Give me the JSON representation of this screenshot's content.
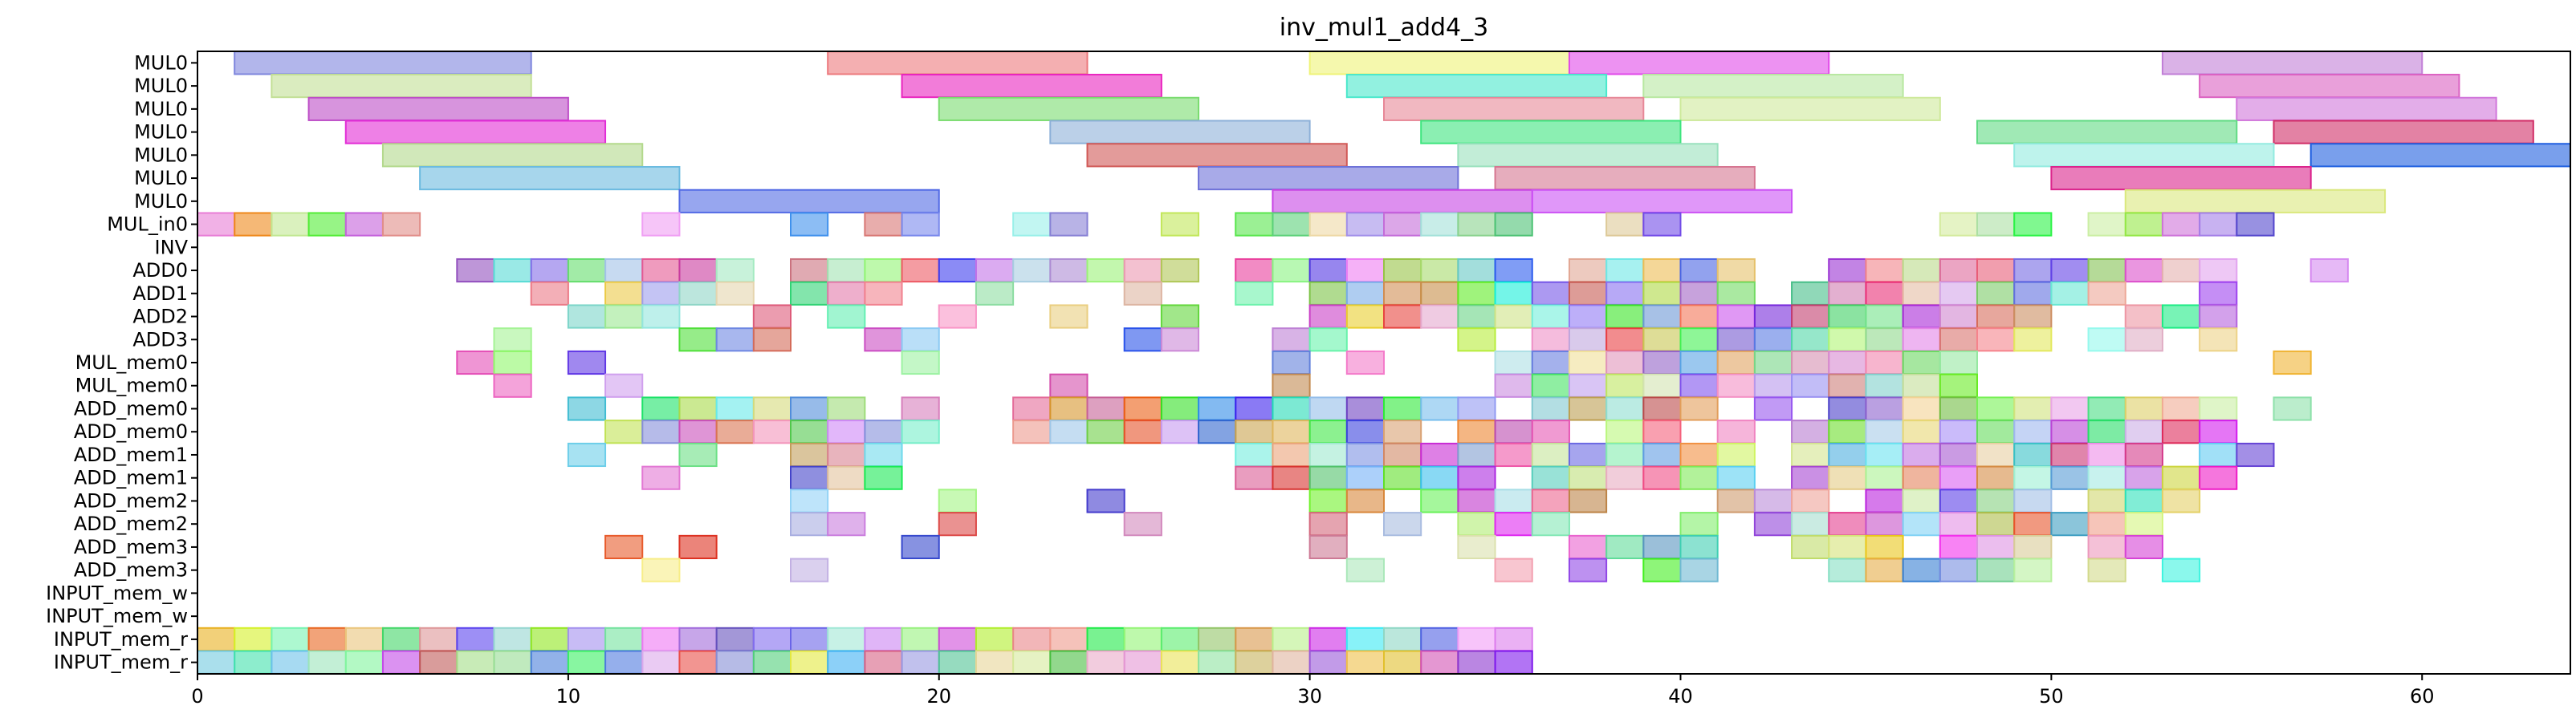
{
  "chart_data": {
    "type": "gantt",
    "title": "inv_mul1_add4_3",
    "xlabel": "",
    "ylabel": "",
    "xlim": [
      0,
      64
    ],
    "x_ticks": [
      0,
      10,
      20,
      30,
      40,
      50,
      60
    ],
    "grid": false,
    "rows": [
      "MUL0",
      "MUL0",
      "MUL0",
      "MUL0",
      "MUL0",
      "MUL0",
      "MUL0",
      "MUL_in0",
      "INV",
      "ADD0",
      "ADD1",
      "ADD2",
      "ADD3",
      "MUL_mem0",
      "MUL_mem0",
      "ADD_mem0",
      "ADD_mem0",
      "ADD_mem1",
      "ADD_mem1",
      "ADD_mem2",
      "ADD_mem2",
      "ADD_mem3",
      "ADD_mem3",
      "INPUT_mem_w",
      "INPUT_mem_w",
      "INPUT_mem_r",
      "INPUT_mem_r"
    ],
    "mul_bars": [
      [
        [
          1,
          8
        ],
        [
          17,
          7
        ],
        [
          30,
          7
        ],
        [
          37,
          7
        ],
        [
          53,
          7
        ]
      ],
      [
        [
          2,
          7
        ],
        [
          19,
          7
        ],
        [
          31,
          7
        ],
        [
          39,
          7
        ],
        [
          54,
          7
        ]
      ],
      [
        [
          3,
          7
        ],
        [
          20,
          7
        ],
        [
          32,
          7
        ],
        [
          40,
          7
        ],
        [
          55,
          7
        ]
      ],
      [
        [
          4,
          7
        ],
        [
          23,
          7
        ],
        [
          33,
          7
        ],
        [
          48,
          7
        ],
        [
          56,
          7
        ]
      ],
      [
        [
          5,
          7
        ],
        [
          24,
          7
        ],
        [
          34,
          7
        ],
        [
          49,
          7
        ],
        [
          57,
          7
        ]
      ],
      [
        [
          6,
          7
        ],
        [
          27,
          7
        ],
        [
          35,
          7
        ],
        [
          50,
          7
        ]
      ],
      [
        [
          13,
          7
        ],
        [
          29,
          7
        ],
        [
          36,
          7
        ],
        [
          52,
          7
        ]
      ]
    ],
    "unit_cells": [
      [
        0,
        1,
        2,
        3,
        4,
        5,
        12,
        16,
        18,
        19,
        22,
        23,
        26,
        28,
        29,
        30,
        31,
        32,
        33,
        34,
        35,
        38,
        39,
        47,
        48,
        49,
        51,
        52,
        53,
        54,
        55
      ],
      [],
      [
        7,
        8,
        9,
        10,
        11,
        12,
        13,
        14,
        16,
        17,
        18,
        19,
        20,
        21,
        22,
        23,
        24,
        25,
        26,
        28,
        29,
        30,
        31,
        32,
        33,
        34,
        35,
        37,
        38,
        39,
        40,
        41,
        44,
        45,
        46,
        47,
        48,
        49,
        50,
        51,
        52,
        53,
        54,
        57
      ],
      [
        9,
        11,
        12,
        13,
        14,
        16,
        17,
        18,
        21,
        25,
        28,
        30,
        31,
        32,
        33,
        34,
        35,
        36,
        37,
        38,
        39,
        40,
        41,
        43,
        44,
        45,
        46,
        47,
        48,
        49,
        50,
        51,
        54
      ],
      [
        10,
        11,
        12,
        15,
        17,
        20,
        23,
        26,
        30,
        31,
        32,
        33,
        34,
        35,
        36,
        37,
        38,
        39,
        40,
        41,
        42,
        43,
        44,
        45,
        46,
        47,
        48,
        49,
        52,
        53,
        54
      ],
      [
        8,
        13,
        14,
        15,
        18,
        19,
        25,
        26,
        29,
        30,
        34,
        36,
        37,
        38,
        39,
        40,
        41,
        42,
        43,
        44,
        45,
        46,
        47,
        48,
        49,
        51,
        52,
        54
      ],
      [
        7,
        8,
        10,
        19,
        29,
        31,
        35,
        36,
        37,
        38,
        39,
        40,
        41,
        42,
        43,
        44,
        45,
        46,
        47,
        56
      ],
      [
        8,
        11,
        23,
        29,
        35,
        36,
        37,
        38,
        39,
        40,
        41,
        42,
        43,
        44,
        45,
        46,
        47
      ],
      [
        10,
        12,
        13,
        14,
        15,
        16,
        17,
        19,
        22,
        23,
        24,
        25,
        26,
        27,
        28,
        29,
        30,
        31,
        32,
        33,
        34,
        36,
        37,
        38,
        39,
        40,
        42,
        44,
        45,
        46,
        47,
        48,
        49,
        50,
        51,
        52,
        53,
        54,
        56
      ],
      [
        11,
        12,
        13,
        14,
        15,
        16,
        17,
        18,
        19,
        22,
        23,
        24,
        25,
        26,
        27,
        28,
        29,
        30,
        31,
        32,
        34,
        35,
        36,
        38,
        39,
        41,
        43,
        44,
        45,
        46,
        47,
        48,
        49,
        50,
        51,
        52,
        53,
        54
      ],
      [
        10,
        13,
        16,
        17,
        18,
        28,
        29,
        30,
        31,
        32,
        33,
        34,
        35,
        36,
        37,
        38,
        39,
        40,
        41,
        43,
        44,
        45,
        46,
        47,
        48,
        49,
        50,
        51,
        52,
        54,
        55
      ],
      [
        12,
        16,
        17,
        18,
        28,
        29,
        30,
        31,
        32,
        33,
        34,
        36,
        37,
        38,
        39,
        40,
        41,
        43,
        44,
        45,
        46,
        47,
        48,
        49,
        50,
        51,
        52,
        53,
        54
      ],
      [
        16,
        20,
        24,
        30,
        31,
        33,
        34,
        35,
        36,
        37,
        41,
        42,
        43,
        45,
        46,
        47,
        48,
        49,
        51,
        52,
        53
      ],
      [
        16,
        17,
        20,
        25,
        30,
        32,
        34,
        35,
        36,
        40,
        42,
        43,
        44,
        45,
        46,
        47,
        48,
        49,
        50,
        51,
        52
      ],
      [
        11,
        13,
        19,
        30,
        34,
        37,
        38,
        39,
        40,
        43,
        44,
        45,
        47,
        48,
        49,
        51,
        52
      ],
      [
        12,
        16,
        31,
        35,
        37,
        39,
        40,
        44,
        45,
        46,
        47,
        48,
        49,
        51,
        53
      ],
      [],
      [],
      [
        0,
        1,
        2,
        3,
        4,
        5,
        6,
        7,
        8,
        9,
        10,
        11,
        12,
        13,
        14,
        15,
        16,
        17,
        18,
        19,
        20,
        21,
        22,
        23,
        24,
        25,
        26,
        27,
        28,
        29,
        30,
        31,
        32,
        33,
        34,
        35
      ],
      [
        0,
        1,
        2,
        3,
        4,
        5,
        6,
        7,
        8,
        9,
        10,
        11,
        12,
        13,
        14,
        15,
        16,
        17,
        18,
        19,
        20,
        21,
        22,
        23,
        24,
        25,
        26,
        27,
        28,
        29,
        30,
        31,
        32,
        33,
        34,
        35
      ]
    ]
  }
}
